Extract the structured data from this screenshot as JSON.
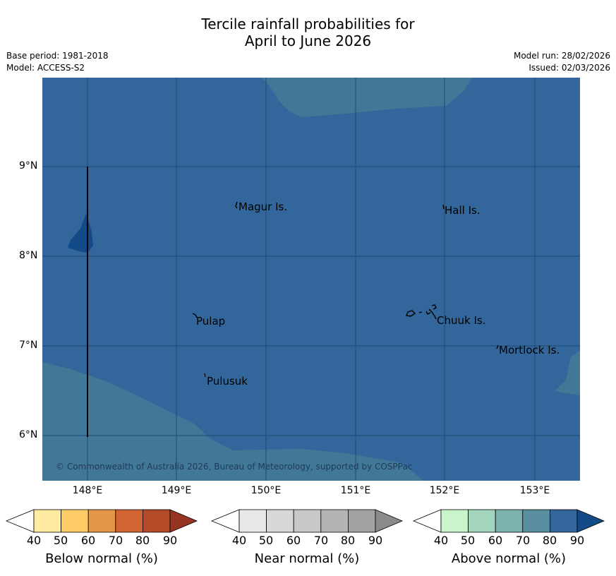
{
  "header": {
    "title_line1": "Tercile rainfall probabilities for",
    "title_line2": "April to June 2026",
    "base_period": "Base period: 1981-2018",
    "model": "Model: ACCESS-S2",
    "model_run": "Model run: 28/02/2026",
    "issued": "Issued: 02/03/2026"
  },
  "map": {
    "latitude_labels": [
      "9°N",
      "8°N",
      "7°N",
      "6°N"
    ],
    "longitude_labels": [
      "148°E",
      "149°E",
      "150°E",
      "151°E",
      "152°E",
      "153°E"
    ],
    "places": {
      "magur": "Magur Is.",
      "hall": "Hall Is.",
      "pulap": "Pulap",
      "chuuk": "Chuuk Is.",
      "mortlock": "Mortlock Is.",
      "pulusuk": "Pulusuk"
    },
    "copyright": "© Commonwealth of Australia 2026, Bureau of Meteorology, supported by COSPPac",
    "colors": {
      "above_80": "#33679b",
      "above_70": "#427897",
      "above_90": "#124b87",
      "grid": "#1f4a73"
    }
  },
  "legend": {
    "ticks": [
      "40",
      "50",
      "60",
      "70",
      "80",
      "90"
    ],
    "below": {
      "title": "Below normal (%)",
      "colors": [
        "#ffffff",
        "#ffeca0",
        "#fdcb66",
        "#e29848",
        "#d06533",
        "#b54a28",
        "#973323"
      ]
    },
    "near": {
      "title": "Near normal (%)",
      "colors": [
        "#ffffff",
        "#e8e8e8",
        "#d8d8d8",
        "#c8c8c8",
        "#b4b4b4",
        "#a2a2a2",
        "#8a8a8a"
      ]
    },
    "above": {
      "title": "Above normal (%)",
      "colors": [
        "#ffffff",
        "#c8f5cc",
        "#a2d5bc",
        "#7cb2ae",
        "#5a8fa0",
        "#33679b",
        "#124b87"
      ]
    }
  }
}
